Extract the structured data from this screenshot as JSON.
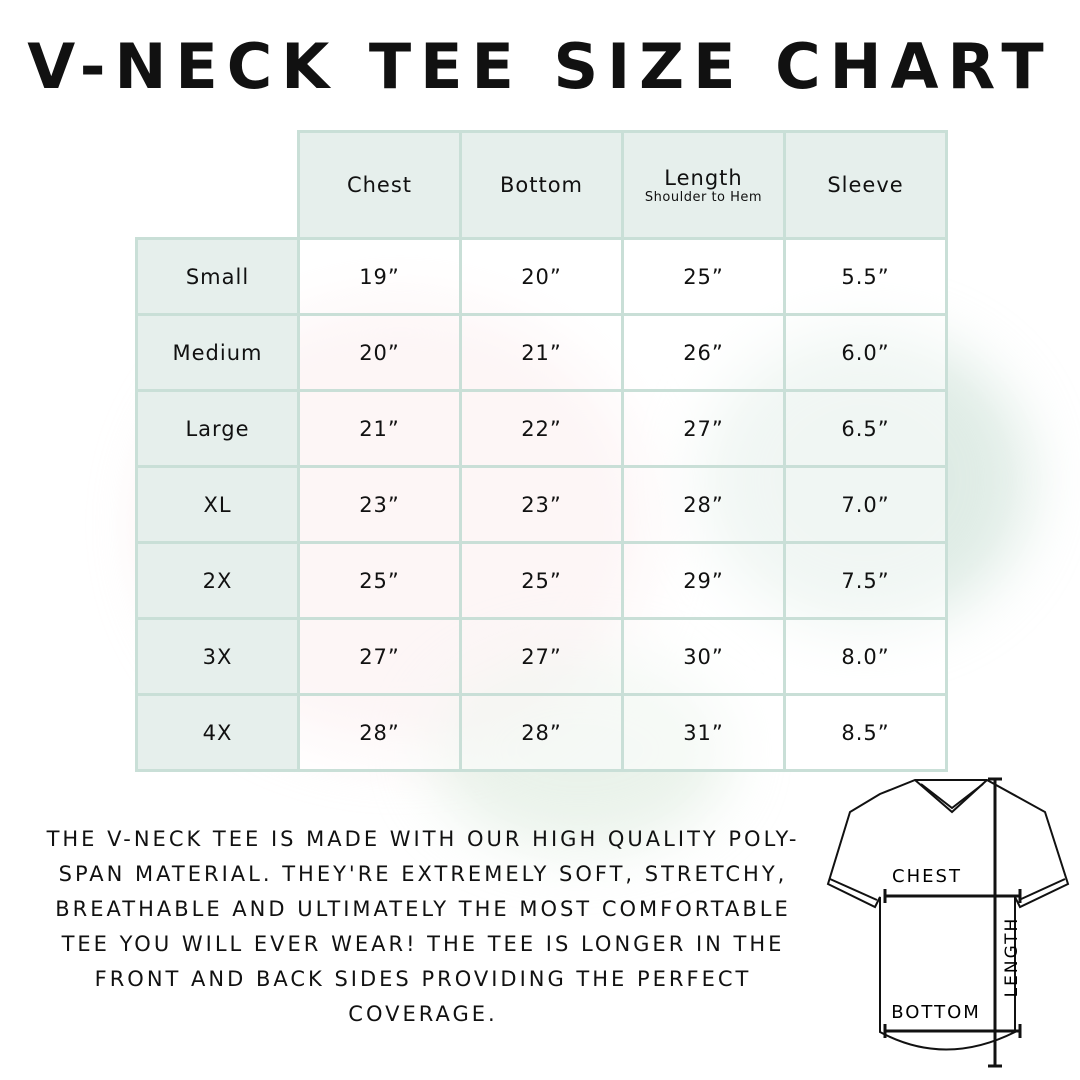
{
  "title": "V-Neck Tee Size Chart",
  "table": {
    "columns": [
      {
        "label": "Chest",
        "sub": ""
      },
      {
        "label": "Bottom",
        "sub": ""
      },
      {
        "label": "Length",
        "sub": "Shoulder to Hem"
      },
      {
        "label": "Sleeve",
        "sub": ""
      }
    ],
    "rows": [
      {
        "size": "Small",
        "values": [
          "19”",
          "20”",
          "25”",
          "5.5”"
        ]
      },
      {
        "size": "Medium",
        "values": [
          "20”",
          "21”",
          "26”",
          "6.0”"
        ]
      },
      {
        "size": "Large",
        "values": [
          "21”",
          "22”",
          "27”",
          "6.5”"
        ]
      },
      {
        "size": "XL",
        "values": [
          "23”",
          "23”",
          "28”",
          "7.0”"
        ]
      },
      {
        "size": "2X",
        "values": [
          "25”",
          "25”",
          "29”",
          "7.5”"
        ]
      },
      {
        "size": "3X",
        "values": [
          "27”",
          "27”",
          "30”",
          "8.0”"
        ]
      },
      {
        "size": "4X",
        "values": [
          "28”",
          "28”",
          "31”",
          "8.5”"
        ]
      }
    ]
  },
  "description": "The V-Neck Tee is made with our high quality poly-span material. They're extremely soft, stretchy, breathable and ultimately the most comfortable tee you will ever wear! The tee is longer in the front and back sides providing the perfect coverage.",
  "diagram": {
    "chest": "CHEST",
    "bottom": "BOTTOM",
    "length": "LENGTH"
  },
  "colors": {
    "header_bg": "#e6efec",
    "border": "#c9dfd7"
  }
}
